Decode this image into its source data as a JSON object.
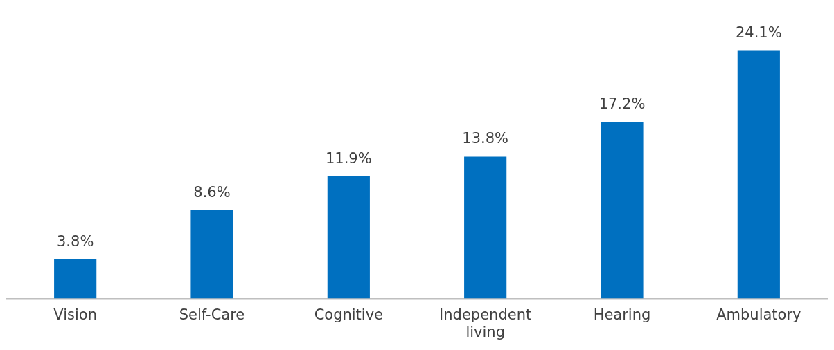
{
  "chart_data": {
    "type": "bar",
    "categories": [
      "Vision",
      "Self-Care",
      "Cognitive",
      "Independent living",
      "Hearing",
      "Ambulatory"
    ],
    "values": [
      3.8,
      8.6,
      11.9,
      13.8,
      17.2,
      24.1
    ],
    "color": "#0070c0",
    "value_labels": [
      "3.8%",
      "8.6%",
      "11.9%",
      "13.8%",
      "17.2%",
      "24.1%"
    ],
    "grid": false,
    "legend": false
  }
}
